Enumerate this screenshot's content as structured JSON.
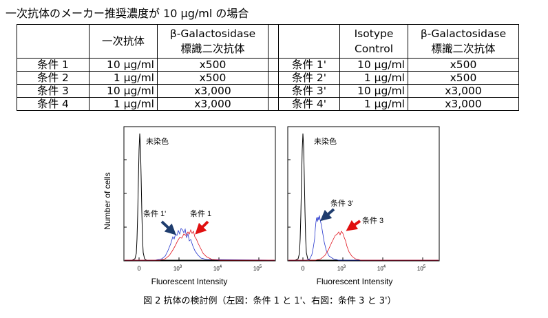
{
  "title": "一次抗体のメーカー推奨濃度が 10 μg/ml の場合",
  "table": {
    "left_headers": [
      "",
      "一次抗体",
      "β-Galactosidase 標識二次抗体"
    ],
    "left_header_lines": [
      [
        ""
      ],
      [
        "一次抗体"
      ],
      [
        "β-Galactosidase",
        "標識二次抗体"
      ]
    ],
    "right_headers": [
      "",
      "Isotype Control",
      "β-Galactosidase 標識二次抗体"
    ],
    "right_header_lines": [
      [
        ""
      ],
      [
        "Isotype",
        "Control"
      ],
      [
        "β-Galactosidase",
        "標識二次抗体"
      ]
    ],
    "left_rows": [
      {
        "cond": "条件 1",
        "primary": "10 μg/ml",
        "secondary": "x500"
      },
      {
        "cond": "条件 2",
        "primary": "1 μg/ml",
        "secondary": "x500"
      },
      {
        "cond": "条件 3",
        "primary": "10 μg/ml",
        "secondary": "x3,000"
      },
      {
        "cond": "条件 4",
        "primary": "1 μg/ml",
        "secondary": "x3,000"
      }
    ],
    "right_rows": [
      {
        "cond": "条件 1'",
        "isotype": "10 μg/ml",
        "secondary": "x500"
      },
      {
        "cond": "条件 2'",
        "isotype": "1 μg/ml",
        "secondary": "x500"
      },
      {
        "cond": "条件 3'",
        "isotype": "10 μg/ml",
        "secondary": "x3,000"
      },
      {
        "cond": "条件 4'",
        "isotype": "1 μg/ml",
        "secondary": "x3,000"
      }
    ]
  },
  "figure": {
    "ylabel": "Number of cells",
    "xlabel": "Fluorescent Intensity",
    "x_ticks": [
      {
        "base": "0",
        "exp": ""
      },
      {
        "base": "10",
        "exp": "3"
      },
      {
        "base": "10",
        "exp": "4"
      },
      {
        "base": "10",
        "exp": "5"
      }
    ],
    "panels": [
      {
        "unstained_label": "未染色",
        "blue_label": "条件 1'",
        "red_label": "条件 1"
      },
      {
        "unstained_label": "未染色",
        "blue_label": "条件 3'",
        "red_label": "条件 3"
      }
    ],
    "colors": {
      "unstained": "#000000",
      "isotype": "#2233cc",
      "stained": "#e0101a",
      "arrow_blue": "#1f3d6e",
      "arrow_red": "#e01010"
    }
  },
  "caption": "図 2 抗体の検討例（左図：条件 1 と 1'、右図：条件 3 と 3'）"
}
